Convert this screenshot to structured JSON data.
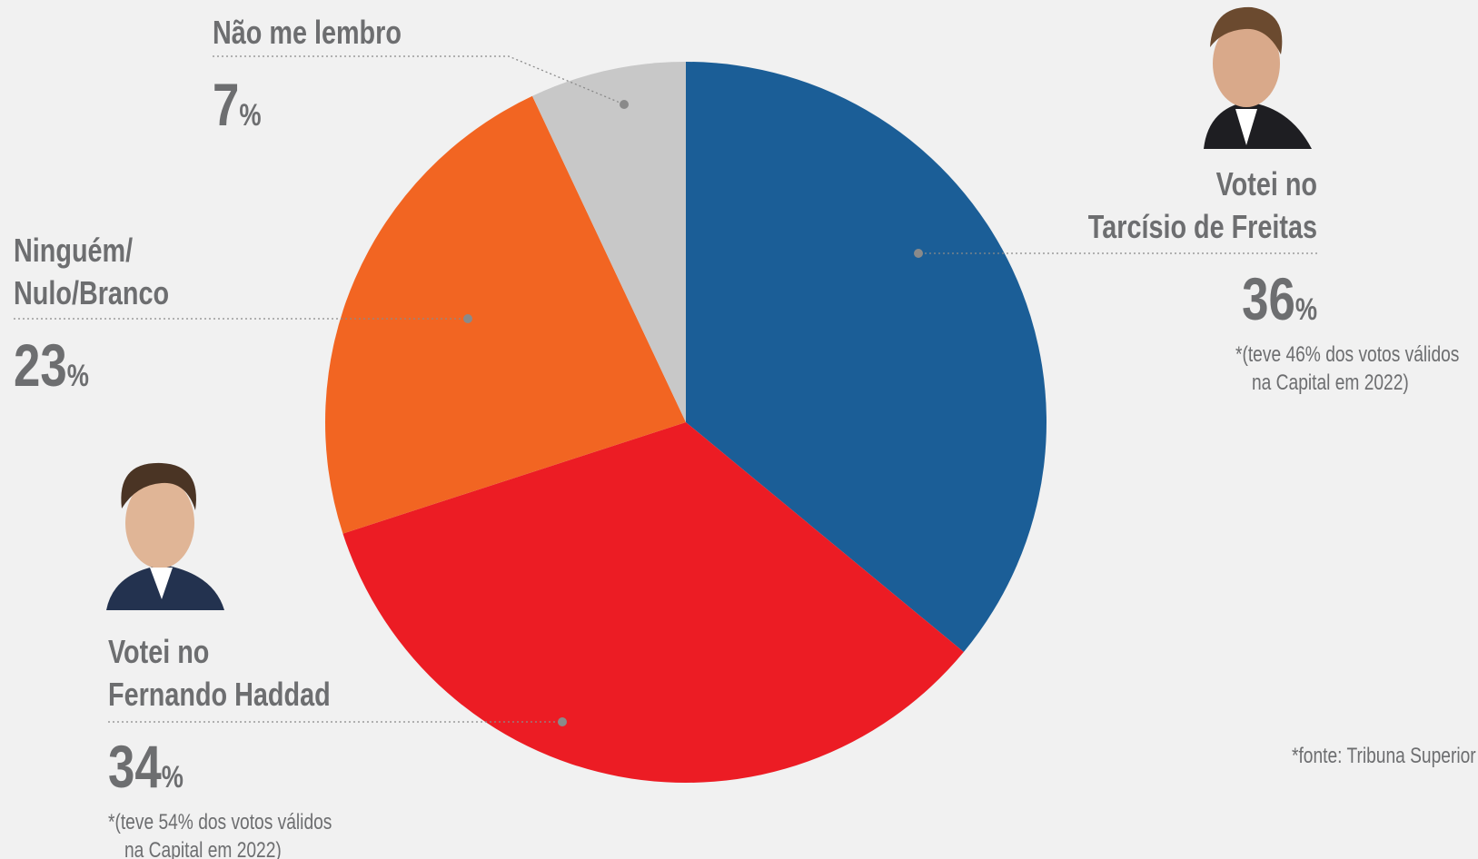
{
  "chart_data": {
    "type": "pie",
    "categories": [
      [
        "Votei no",
        "Tarcísio de Freitas"
      ],
      [
        "Votei no",
        "Fernando Haddad"
      ],
      [
        "Ninguém/",
        "Nulo/Branco"
      ],
      [
        "Não me lembro"
      ]
    ],
    "values": [
      36,
      34,
      23,
      7
    ],
    "value_labels": [
      "36%",
      "34%",
      "23%",
      "7%"
    ],
    "colors": [
      "#1b5e97",
      "#ec1c24",
      "#f26522",
      "#c8c8c8"
    ],
    "annotations": [
      [
        "*(teve 46% dos votos válidos",
        "na Capital em 2022)"
      ],
      [
        "*(teve 54% dos votos válidos",
        "na Capital em 2022)"
      ]
    ],
    "source": "*fonte: Tribuna Superior"
  }
}
